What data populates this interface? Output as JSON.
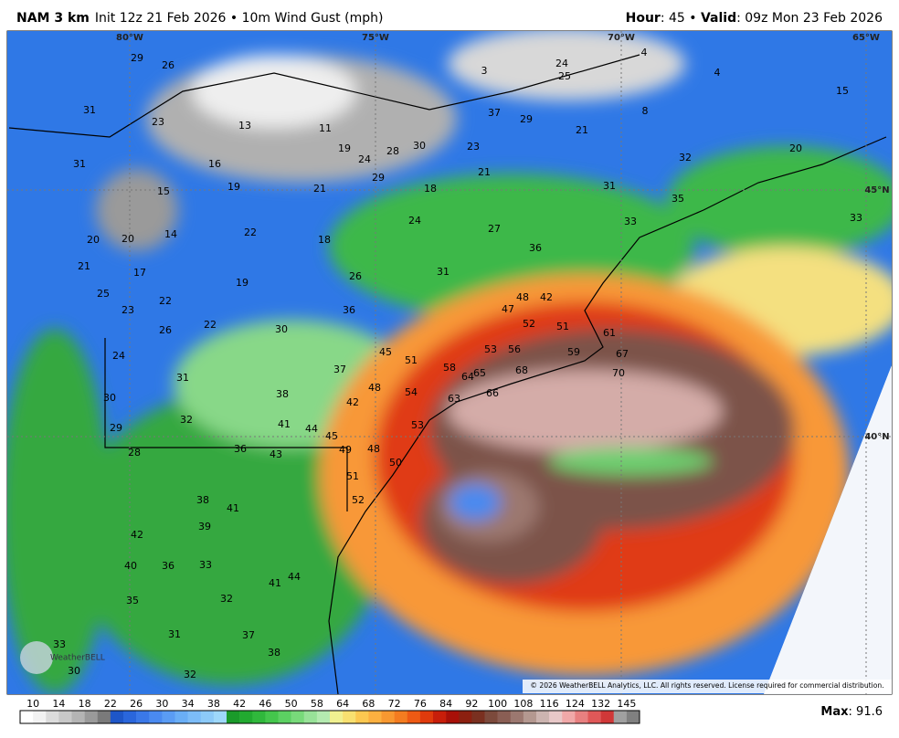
{
  "header": {
    "model": "NAM 3 km",
    "init": "Init 12z 21 Feb 2026 • 10m Wind Gust (mph)",
    "hour_label": "Hour",
    "hour": ": 45 • ",
    "valid_label": "Valid",
    "valid": ": 09z Mon 23 Feb 2026"
  },
  "map": {
    "lon_labels": [
      "80°W",
      "75°W",
      "70°W",
      "65°W"
    ],
    "lat_labels": [
      "45°N",
      "40°N"
    ],
    "copyright": "© 2026 WeatherBELL Analytics, LLC. All rights reserved. License required for commercial distribution.",
    "logo": "WeatherBELL",
    "station_values": [
      29,
      26,
      3,
      24,
      25,
      4,
      4,
      15,
      31,
      23,
      13,
      11,
      37,
      29,
      21,
      8,
      20,
      32,
      31,
      16,
      19,
      28,
      30,
      23,
      24,
      19,
      15,
      21,
      29,
      18,
      21,
      31,
      35,
      33,
      20,
      20,
      14,
      22,
      18,
      24,
      27,
      36,
      33,
      21,
      17,
      19,
      26,
      31,
      48,
      42,
      25,
      22,
      23,
      36,
      47,
      52,
      51,
      61,
      26,
      22,
      30,
      45,
      53,
      56,
      59,
      67,
      24,
      51,
      58,
      64,
      65,
      68,
      70,
      31,
      37,
      54,
      63,
      66,
      30,
      38,
      42,
      48,
      41,
      44,
      45,
      53,
      29,
      32,
      49,
      48,
      50,
      28,
      36,
      43,
      51,
      52,
      38,
      41,
      39,
      42,
      40,
      36,
      41,
      44,
      33,
      35,
      32,
      31,
      37,
      38,
      33,
      30,
      32
    ]
  },
  "colorbar": {
    "ticks": [
      10,
      14,
      18,
      22,
      26,
      30,
      34,
      38,
      42,
      46,
      50,
      58,
      64,
      68,
      72,
      76,
      84,
      92,
      100,
      108,
      116,
      124,
      132,
      145
    ],
    "colors": [
      "#ffffff",
      "#f2f2f2",
      "#dcdcdc",
      "#c8c8c8",
      "#b4b4b4",
      "#9a9a9a",
      "#7a7a7a",
      "#1e56c8",
      "#2a66dc",
      "#3a78e8",
      "#4a8af0",
      "#5a9cf4",
      "#6aaef6",
      "#7cbcf8",
      "#8ccaf8",
      "#9ed8fa",
      "#1a9a2a",
      "#22aa30",
      "#30b83c",
      "#44c64c",
      "#5cd062",
      "#78da7a",
      "#98e298",
      "#b4eab0",
      "#f0f090",
      "#f8e070",
      "#fcc850",
      "#fcb040",
      "#f89830",
      "#f47c20",
      "#ee5a14",
      "#e03a0c",
      "#c81e0a",
      "#a81008",
      "#8c2010",
      "#7a3020",
      "#7c4a3c",
      "#8a5e54",
      "#9c7870",
      "#b49890",
      "#ccb4b0",
      "#e8c8c8",
      "#f0a8a8",
      "#e88080",
      "#e05858",
      "#d03838",
      "#a0a0a0",
      "#808080"
    ]
  },
  "footer": {
    "max_label": "Max",
    "max": ": 91.6"
  }
}
